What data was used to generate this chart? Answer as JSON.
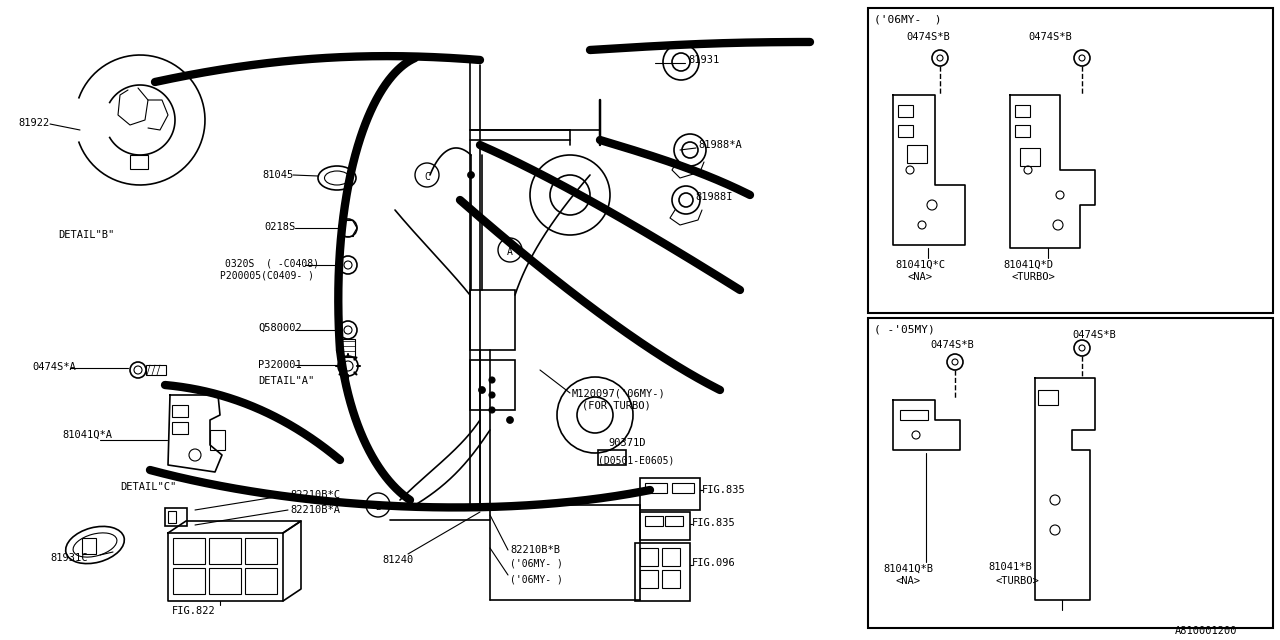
{
  "bg_color": "#ffffff",
  "line_color": "#000000",
  "text_color": "#000000",
  "diagram_id": "A810001200",
  "panel_06MY_label": "('06MY-  )",
  "panel_05MY_label": "( -'05MY)",
  "thick_lw": 6.0,
  "thin_lw": 1.2
}
